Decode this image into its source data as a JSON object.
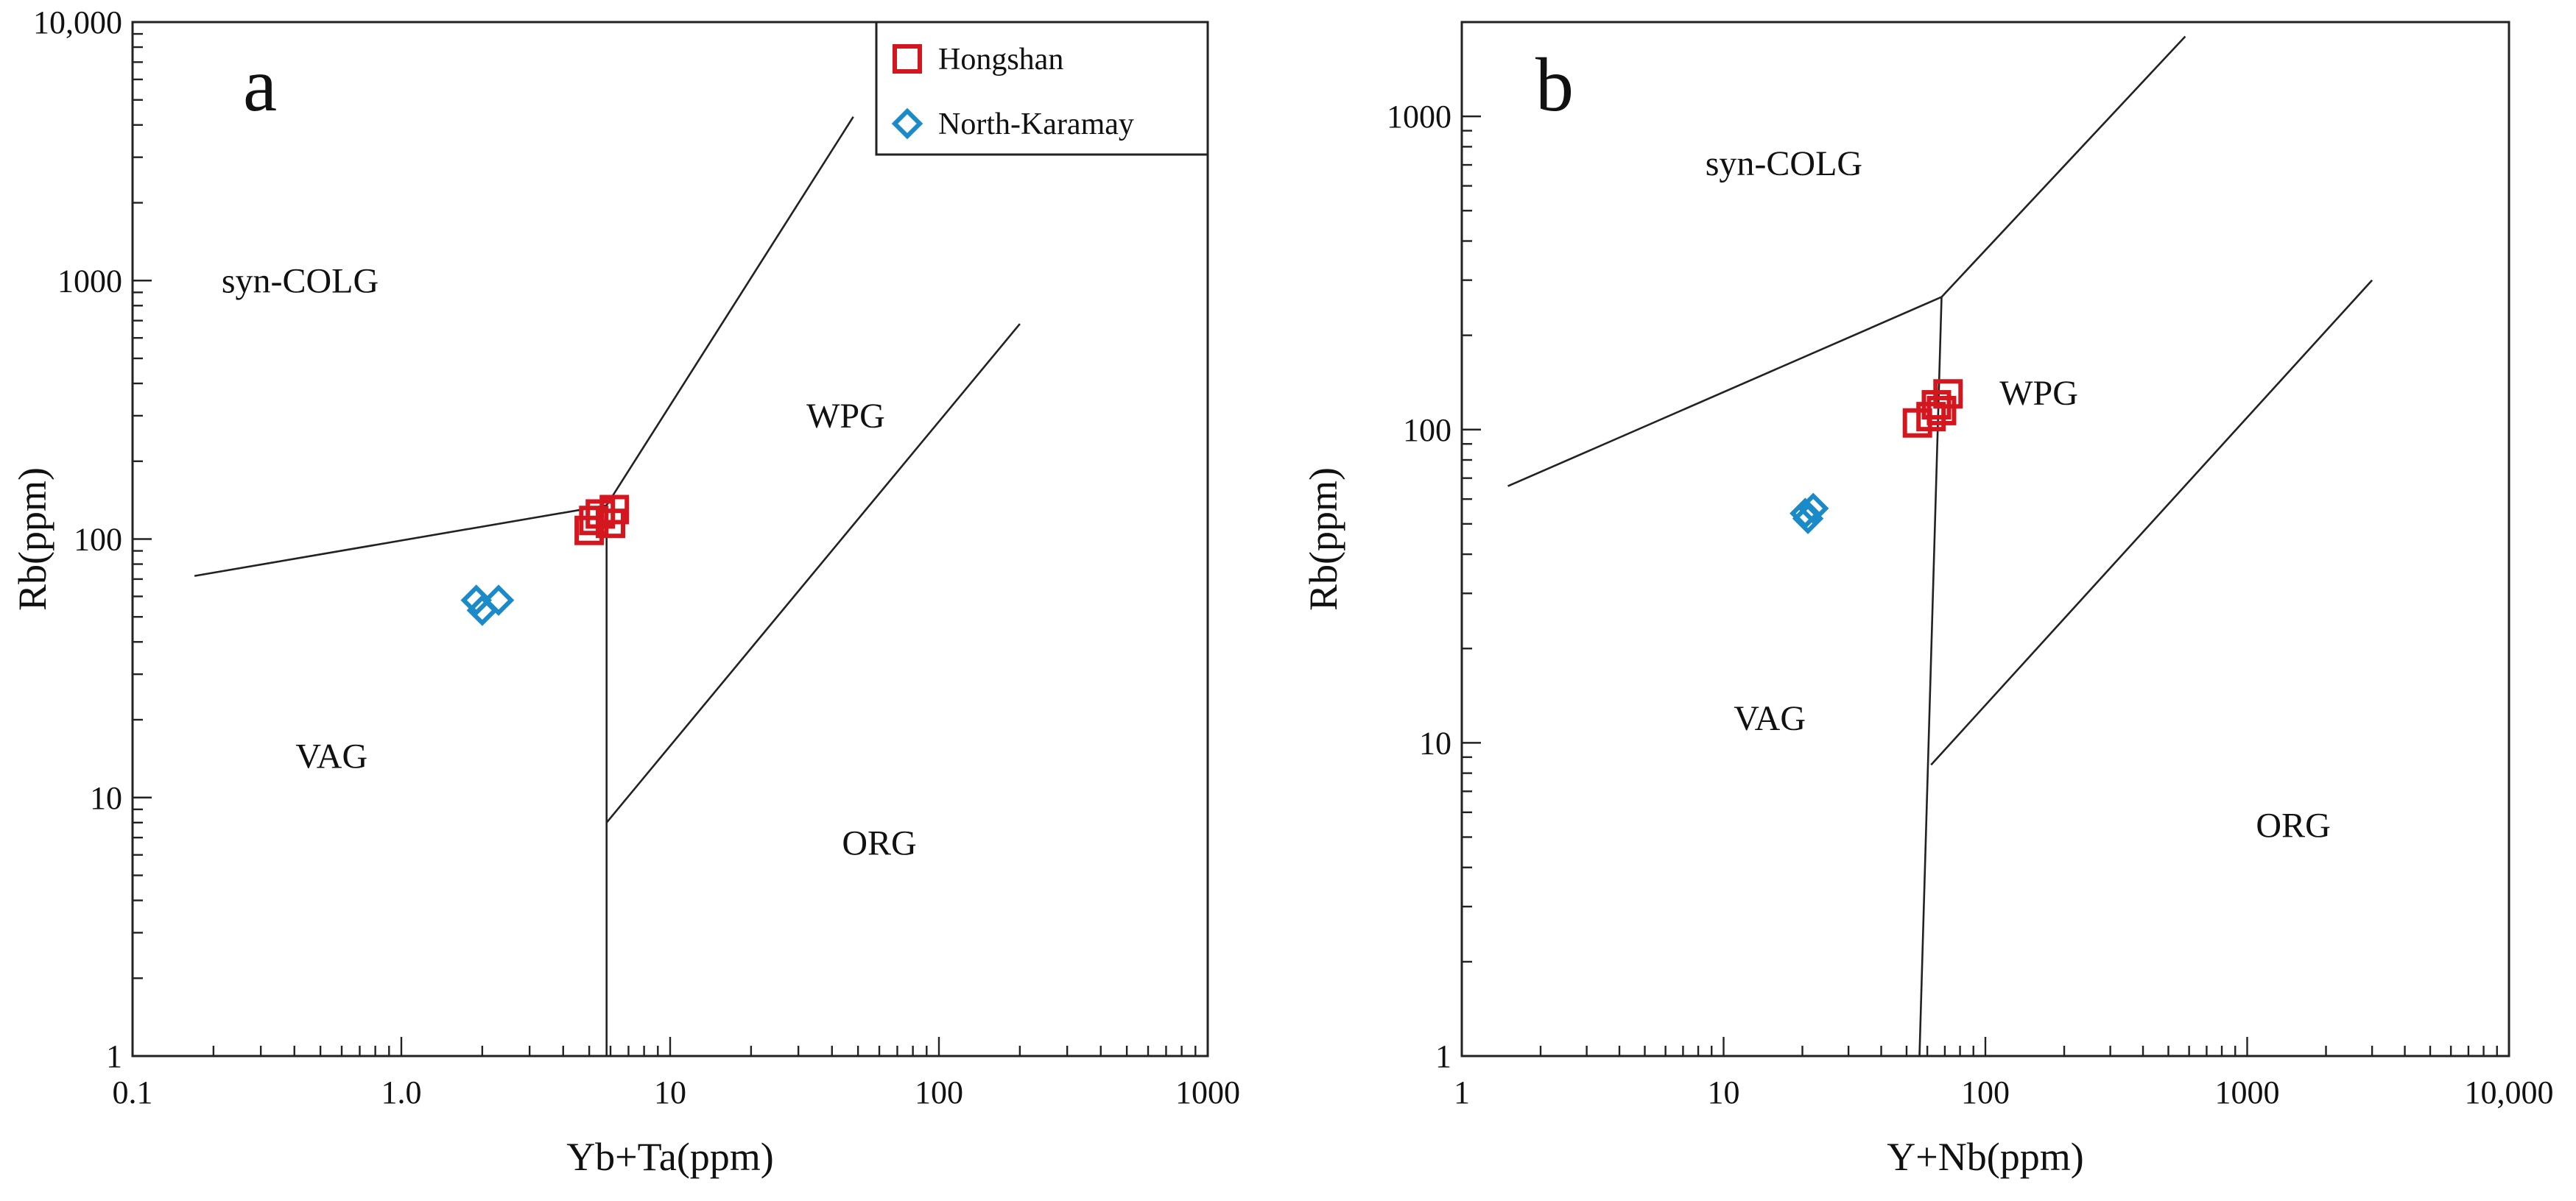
{
  "chart_data": [
    {
      "type": "scatter",
      "panel_label": "a",
      "xlabel": "Yb+Ta(ppm)",
      "ylabel": "Rb(ppm)",
      "x_scale": "log",
      "y_scale": "log",
      "xlim": [
        0.1,
        1000
      ],
      "ylim": [
        1,
        10000
      ],
      "x_tick_labels": [
        "0.1",
        "1.0",
        "10",
        "100",
        "1000"
      ],
      "y_tick_labels": [
        "1",
        "10",
        "100",
        "1000",
        "10,000"
      ],
      "fields": [
        {
          "name": "syn-COLG",
          "x": 0.42,
          "y": 900
        },
        {
          "name": "WPG",
          "x": 45,
          "y": 270
        },
        {
          "name": "VAG",
          "x": 0.55,
          "y": 13
        },
        {
          "name": "ORG",
          "x": 60,
          "y": 6
        }
      ],
      "boundaries": [
        [
          [
            0.17,
            72
          ],
          [
            5.8,
            135
          ]
        ],
        [
          [
            5.8,
            135
          ],
          [
            48,
            4300
          ]
        ],
        [
          [
            5.8,
            1
          ],
          [
            5.8,
            135
          ]
        ],
        [
          [
            5.8,
            8
          ],
          [
            200,
            680
          ]
        ]
      ],
      "series": [
        {
          "name": "Hongshan",
          "marker": "square",
          "color": "#d4171e",
          "points": [
            [
              5.0,
              108
            ],
            [
              5.2,
              118
            ],
            [
              5.5,
              125
            ],
            [
              6.0,
              115
            ],
            [
              6.2,
              130
            ]
          ]
        },
        {
          "name": "North-Karamay",
          "marker": "diamond",
          "color": "#1b8ac8",
          "points": [
            [
              1.9,
              58
            ],
            [
              2.0,
              53
            ],
            [
              2.3,
              58
            ]
          ]
        }
      ],
      "legend": {
        "position": "top-right",
        "entries": [
          "Hongshan",
          "North-Karamay"
        ]
      }
    },
    {
      "type": "scatter",
      "panel_label": "b",
      "xlabel": "Y+Nb(ppm)",
      "ylabel": "Rb(ppm)",
      "x_scale": "log",
      "y_scale": "log",
      "xlim": [
        1,
        10000
      ],
      "ylim": [
        1,
        2000
      ],
      "x_tick_labels": [
        "1",
        "10",
        "100",
        "1000",
        "10,000"
      ],
      "y_tick_labels": [
        "1",
        "10",
        "100",
        "1000"
      ],
      "fields": [
        {
          "name": "syn-COLG",
          "x": 17,
          "y": 650
        },
        {
          "name": "WPG",
          "x": 160,
          "y": 120
        },
        {
          "name": "VAG",
          "x": 15,
          "y": 11
        },
        {
          "name": "ORG",
          "x": 1500,
          "y": 5
        }
      ],
      "boundaries": [
        [
          [
            1.5,
            66
          ],
          [
            68,
            265
          ]
        ],
        [
          [
            68,
            265
          ],
          [
            580,
            1800
          ]
        ],
        [
          [
            56,
            1
          ],
          [
            68,
            265
          ]
        ],
        [
          [
            62,
            8.5
          ],
          [
            3000,
            300
          ]
        ]
      ],
      "series": [
        {
          "name": "Hongshan",
          "marker": "square",
          "color": "#d4171e",
          "points": [
            [
              55,
              105
            ],
            [
              62,
              110
            ],
            [
              65,
              120
            ],
            [
              72,
              130
            ],
            [
              68,
              115
            ]
          ]
        },
        {
          "name": "North-Karamay",
          "marker": "diamond",
          "color": "#1b8ac8",
          "points": [
            [
              20.5,
              54
            ],
            [
              22,
              56
            ],
            [
              21,
              52
            ]
          ]
        }
      ]
    }
  ]
}
